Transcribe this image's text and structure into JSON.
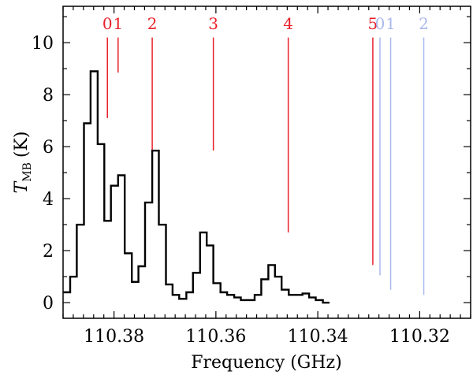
{
  "chart_data": {
    "type": "line",
    "xlabel": "Frequency (GHz)",
    "ylabel_main": "T",
    "ylabel_sub": "MB",
    "ylabel_unit": "(K)",
    "xlim": [
      110.39,
      110.31
    ],
    "ylim": [
      -0.6,
      11.4
    ],
    "x_ticks": [
      {
        "value": 110.38,
        "label": "110.38"
      },
      {
        "value": 110.36,
        "label": "110.36"
      },
      {
        "value": 110.34,
        "label": "110.34"
      },
      {
        "value": 110.32,
        "label": "110.32"
      }
    ],
    "y_ticks": [
      {
        "value": 0,
        "label": "0"
      },
      {
        "value": 2,
        "label": "2"
      },
      {
        "value": 4,
        "label": "4"
      },
      {
        "value": 6,
        "label": "6"
      },
      {
        "value": 8,
        "label": "8"
      },
      {
        "value": 10,
        "label": "10"
      }
    ],
    "step_edges": [
      110.3899,
      110.3886,
      110.3873,
      110.3859,
      110.3846,
      110.3832,
      110.3819,
      110.3806,
      110.3792,
      110.3779,
      110.3765,
      110.3752,
      110.3739,
      110.3725,
      110.3712,
      110.3698,
      110.3685,
      110.3672,
      110.3658,
      110.3645,
      110.3631,
      110.3618,
      110.3605,
      110.3591,
      110.3578,
      110.3564,
      110.3551,
      110.3538,
      110.3524,
      110.3511,
      110.3497,
      110.3484,
      110.3471,
      110.3457,
      110.3444,
      110.343,
      110.3417,
      110.3404,
      110.339,
      110.3377,
      110.3363,
      110.335,
      110.3337,
      110.3323,
      110.331,
      110.3296,
      110.3283,
      110.327,
      110.3256,
      110.3243,
      110.3229,
      110.3216,
      110.3203,
      110.3189,
      110.3176,
      110.3162,
      110.3149,
      110.3136,
      110.3122,
      110.3109
    ],
    "step_values": [
      0.4,
      1.0,
      3.0,
      6.9,
      8.9,
      6.1,
      3.15,
      4.5,
      4.9,
      1.9,
      0.8,
      1.4,
      3.85,
      5.85,
      3.0,
      0.7,
      0.3,
      0.15,
      0.4,
      1.15,
      2.7,
      2.2,
      0.75,
      0.4,
      0.3,
      0.2,
      0.1,
      0.1,
      0.3,
      0.9,
      1.45,
      1.0,
      0.5,
      0.3,
      0.3,
      0.35,
      0.2,
      0.1,
      0.0
    ],
    "hyperfine_groups": [
      {
        "name": "red",
        "color": "#e8202a",
        "markers": [
          {
            "x": 110.3813,
            "top": 10.2,
            "bottom": 7.1,
            "label": "0"
          },
          {
            "x": 110.3792,
            "top": 10.2,
            "bottom": 8.85,
            "label": "1"
          },
          {
            "x": 110.3725,
            "top": 10.2,
            "bottom": 4.95,
            "label": "2"
          },
          {
            "x": 110.3605,
            "top": 10.2,
            "bottom": 5.85,
            "label": "3"
          },
          {
            "x": 110.3458,
            "top": 10.2,
            "bottom": 2.7,
            "label": "4"
          },
          {
            "x": 110.3292,
            "top": 10.2,
            "bottom": 1.45,
            "label": "5"
          }
        ]
      },
      {
        "name": "blue",
        "color": "#aab8ee",
        "markers": [
          {
            "x": 110.3278,
            "top": 10.2,
            "bottom": 1.05,
            "label": "0"
          },
          {
            "x": 110.3257,
            "top": 10.2,
            "bottom": 0.5,
            "label": "1"
          },
          {
            "x": 110.3192,
            "top": 10.2,
            "bottom": 0.3,
            "label": "2"
          }
        ]
      }
    ],
    "grid": false,
    "legend": "none"
  }
}
